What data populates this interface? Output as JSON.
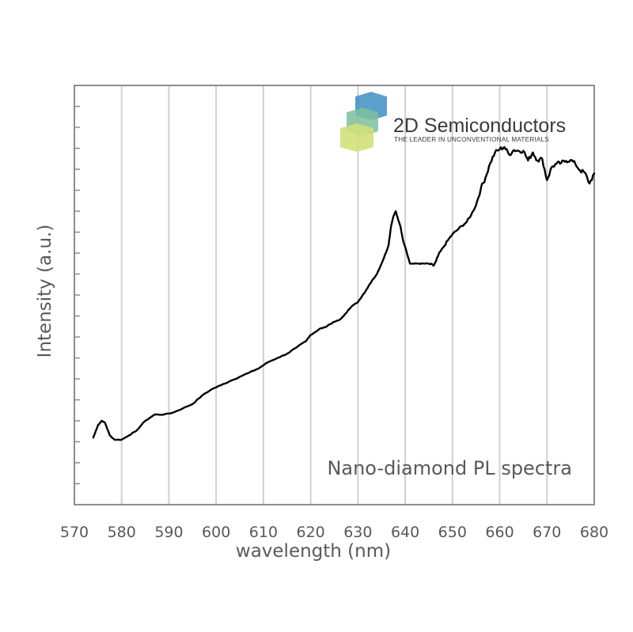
{
  "chart_data": {
    "type": "line",
    "title": "",
    "xlabel": "wavelength (nm)",
    "ylabel": "Intensity (a.u.)",
    "xlim": [
      570,
      680
    ],
    "ylim": [
      0,
      100
    ],
    "x_ticks": [
      "570",
      "580",
      "590",
      "600",
      "610",
      "620",
      "630",
      "640",
      "650",
      "660",
      "670",
      "680"
    ],
    "y_tick_labels_shown": false,
    "grid": "vertical",
    "legend": "none",
    "annotation": "Nano-diamond PL spectra",
    "line_color": "#000000",
    "series": [
      {
        "x": [
          574,
          575,
          575.8,
          576.5,
          577.5,
          578.5,
          580,
          581.5,
          583,
          585,
          587,
          589,
          591,
          593,
          595,
          597,
          599,
          601,
          603,
          605,
          607,
          609,
          611,
          613,
          615,
          617,
          619,
          620,
          621,
          622,
          623,
          624,
          625,
          626,
          627,
          628,
          629,
          630,
          631,
          632,
          633,
          634,
          635,
          636,
          636.5,
          637,
          637.5,
          638,
          638.5,
          639,
          639.5,
          640,
          641,
          642,
          643,
          644,
          645,
          646,
          646.5,
          647,
          648,
          649,
          650,
          651,
          652,
          653,
          654,
          655,
          656,
          657,
          658,
          659,
          660,
          661,
          662,
          663,
          664,
          665,
          666,
          667,
          668,
          669,
          670,
          671,
          672,
          673,
          674,
          675,
          676,
          677,
          678,
          679,
          680
        ],
        "values": [
          16.0,
          19.0,
          20.0,
          19.5,
          16.5,
          15.5,
          15.5,
          16.5,
          17.5,
          20.0,
          21.5,
          21.5,
          22.0,
          23.0,
          24.0,
          26.0,
          27.5,
          28.5,
          29.5,
          30.5,
          31.5,
          32.5,
          34.0,
          35.0,
          36.0,
          37.5,
          39.0,
          40.5,
          41.2,
          42.0,
          42.3,
          43.0,
          43.6,
          44.0,
          45.0,
          46.5,
          47.6,
          48.3,
          50.0,
          51.6,
          53.5,
          55.0,
          57.5,
          60.3,
          62.0,
          66.4,
          68.8,
          70.0,
          68.0,
          66.4,
          63.2,
          61.5,
          57.5,
          57.5,
          57.5,
          57.5,
          57.5,
          57.0,
          58.0,
          59.5,
          61.3,
          63.0,
          64.5,
          65.5,
          66.5,
          67.4,
          69.2,
          71.5,
          75.4,
          78.0,
          81.5,
          84.0,
          84.8,
          85.3,
          83.5,
          84.6,
          84.4,
          84.4,
          82.1,
          84.0,
          82.1,
          82.5,
          77.4,
          80.5,
          81.3,
          81.5,
          82.0,
          82.2,
          81.3,
          79.7,
          79.2,
          76.6,
          79.0
        ]
      }
    ]
  },
  "logo": {
    "name": "2D Semiconductors",
    "tagline": "THE LEADER IN UNCONVENTIONAL MATERIALS",
    "colors": [
      "#3d8fc1",
      "#7fbf9c",
      "#d1e07a"
    ]
  }
}
